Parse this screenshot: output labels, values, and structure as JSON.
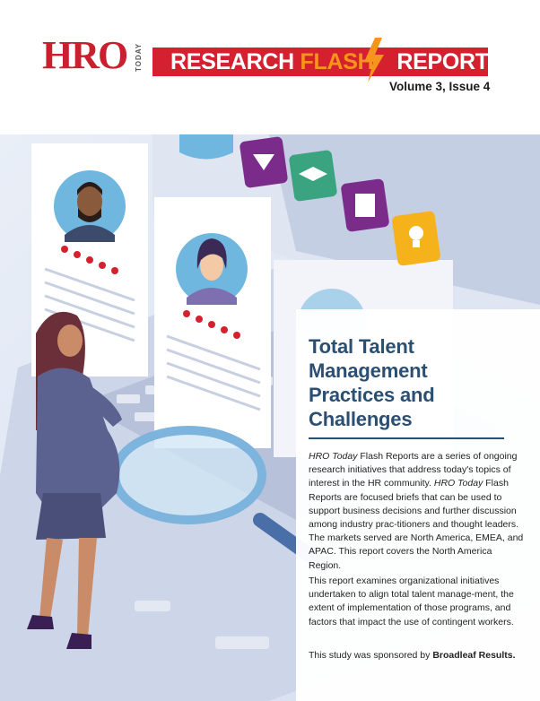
{
  "header": {
    "logo_main": "HRO",
    "logo_sub": "TODAY",
    "banner_part1": "RESEARCH ",
    "banner_part2": "FLASH",
    "banner_part3": "REPORT",
    "volume": "Volume 3, Issue 4"
  },
  "article": {
    "title": "Total Talent Management Practices and Challenges",
    "p1_em1": "HRO Today",
    "p1_a": " Flash Reports are a series of ongoing research initiatives that address today's topics of interest in the HR community. ",
    "p1_em2": "HRO Today",
    "p1_b": " Flash Reports are focused briefs that can be used to support business decisions and further discussion among industry prac-titioners and thought leaders. The markets served are North America, EMEA, and APAC. This report covers the North America Region.",
    "p2": "This report examines organizational initiatives undertaken to align total talent manage-ment, the extent of implementation of those programs, and factors that impact the use of contingent workers.",
    "p3_a": "This study was sponsored by ",
    "p3_sponsor": "Broadleaf Results."
  },
  "colors": {
    "brand_red": "#d4202f",
    "flash_orange": "#f7941d",
    "title_blue": "#2b4f72"
  }
}
